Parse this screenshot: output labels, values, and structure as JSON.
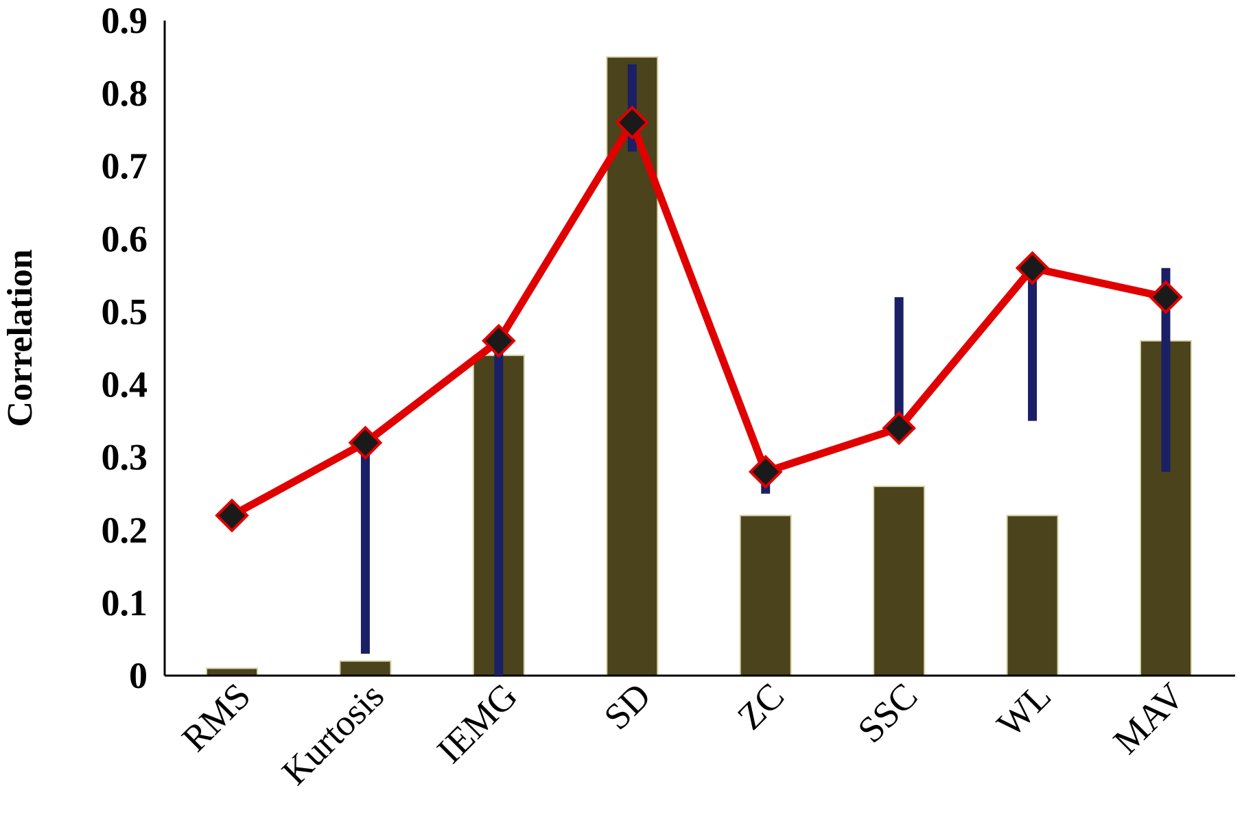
{
  "chart_data": {
    "type": "bar",
    "title": "",
    "xlabel": "",
    "ylabel": "Correlation",
    "ylim": [
      0,
      0.9
    ],
    "yticks": [
      "0",
      "0.1",
      "0.2",
      "0.3",
      "0.4",
      "0.5",
      "0.6",
      "0.7",
      "0.8",
      "0.9"
    ],
    "grid": false,
    "legend": "none",
    "categories": [
      "RMS",
      "Kurtosis",
      "IEMG",
      "SD",
      "ZC",
      "SSC",
      "WL",
      "MAV"
    ],
    "series": [
      {
        "type": "bar",
        "color": "#4a431c",
        "values": [
          0.01,
          0.02,
          0.44,
          0.85,
          0.22,
          0.26,
          0.22,
          0.46
        ]
      },
      {
        "type": "line",
        "color": "#e00000",
        "marker": "diamond",
        "marker_color": "#1a1a1a",
        "values": [
          0.22,
          0.32,
          0.46,
          0.76,
          0.28,
          0.34,
          0.56,
          0.52
        ]
      }
    ],
    "error_bars": {
      "color": "#1a1f66",
      "ranges": [
        null,
        [
          0.03,
          0.32
        ],
        [
          0.0,
          0.46
        ],
        [
          0.72,
          0.84
        ],
        [
          0.25,
          0.28
        ],
        [
          0.34,
          0.52
        ],
        [
          0.35,
          0.56
        ],
        [
          0.28,
          0.56
        ]
      ]
    }
  }
}
